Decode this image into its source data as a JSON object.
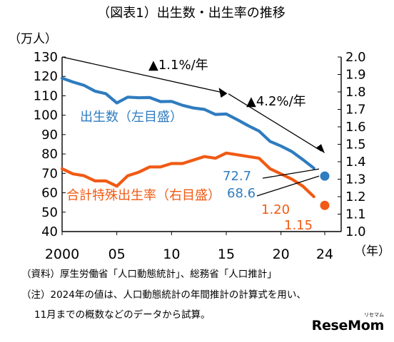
{
  "chart_data": {
    "type": "line",
    "title": "（図表1）出生数・出生率の推移",
    "left_unit": "（万人）",
    "x_unit": "（年）",
    "x_tick_labels": [
      "2000",
      "05",
      "10",
      "15",
      "20",
      "24"
    ],
    "x_tick_values": [
      2000,
      2005,
      2010,
      2015,
      2020,
      2024
    ],
    "xlim": [
      2000,
      2024
    ],
    "ylim_left": [
      40,
      130
    ],
    "ylim_right": [
      1.0,
      2.0
    ],
    "yticks_left": [
      "40",
      "50",
      "60",
      "70",
      "80",
      "90",
      "100",
      "110",
      "120",
      "130"
    ],
    "yticks_right": [
      "1.0",
      "1.1",
      "1.2",
      "1.3",
      "1.4",
      "1.5",
      "1.6",
      "1.7",
      "1.8",
      "1.9",
      "2.0"
    ],
    "grid": false,
    "series": [
      {
        "name": "出生数（左目盛）",
        "axis": "left",
        "color": "#2f7cc0",
        "x": [
          2000,
          2001,
          2002,
          2003,
          2004,
          2005,
          2006,
          2007,
          2008,
          2009,
          2010,
          2011,
          2012,
          2013,
          2014,
          2015,
          2016,
          2017,
          2018,
          2019,
          2020,
          2021,
          2022,
          2023
        ],
        "values": [
          119.1,
          117.1,
          115.4,
          112.4,
          111.1,
          106.3,
          109.3,
          109.0,
          109.1,
          107.0,
          107.1,
          105.1,
          103.7,
          103.0,
          100.4,
          100.6,
          97.7,
          94.6,
          91.8,
          86.5,
          84.1,
          81.2,
          77.1,
          72.7
        ]
      },
      {
        "name": "合計特殊出生率（右目盛）",
        "axis": "right",
        "color": "#f05a14",
        "x": [
          2000,
          2001,
          2002,
          2003,
          2004,
          2005,
          2006,
          2007,
          2008,
          2009,
          2010,
          2011,
          2012,
          2013,
          2014,
          2015,
          2016,
          2017,
          2018,
          2019,
          2020,
          2021,
          2022,
          2023
        ],
        "values": [
          1.36,
          1.33,
          1.32,
          1.29,
          1.29,
          1.26,
          1.32,
          1.34,
          1.37,
          1.37,
          1.39,
          1.39,
          1.41,
          1.43,
          1.42,
          1.45,
          1.44,
          1.43,
          1.42,
          1.36,
          1.33,
          1.3,
          1.26,
          1.2
        ]
      }
    ],
    "points_2024": [
      {
        "series": "出生数（左目盛）",
        "axis": "left",
        "x": 2024,
        "value": 68.6,
        "label": "68.6",
        "color": "#2f7cc0"
      },
      {
        "series": "合計特殊出生率（右目盛）",
        "axis": "right",
        "x": 2024,
        "value": 1.15,
        "label": "1.15",
        "color": "#f05a14"
      }
    ],
    "annotations": {
      "label_2023_births": "72.7",
      "label_2023_tfr": "1.20",
      "trend_1": "▲1.1%/年",
      "trend_2": "▲4.2%/年"
    }
  },
  "notes": {
    "source": "（資料）厚生労働省「人口動態統計」、総務省「人口推計」",
    "note_line1": "（注）2024年の値は、人口動態統計の年間推計の計算式を用い、",
    "note_line2": "11月までの概数などのデータから試算。"
  },
  "logo_text": "ReseMom",
  "logo_tag": "リセマム"
}
